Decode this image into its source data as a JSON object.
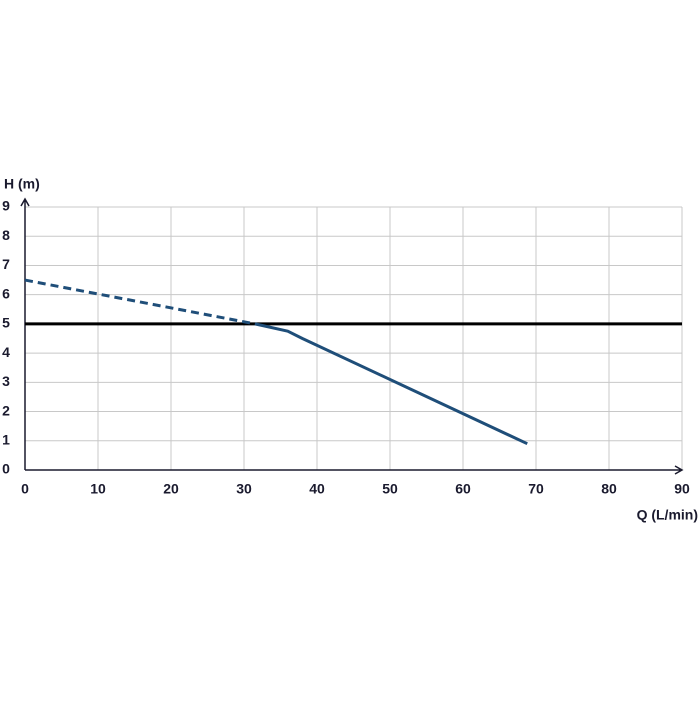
{
  "chart_data": {
    "type": "line",
    "y_label": "H (m)",
    "x_label": "Q (L/min)",
    "xlim": [
      0,
      90
    ],
    "xticks": [
      0,
      10,
      20,
      30,
      40,
      50,
      60,
      70,
      80,
      90
    ],
    "ylim": [
      0,
      9
    ],
    "yticks": [
      0,
      1,
      2,
      3,
      4,
      5,
      6,
      7,
      8,
      9
    ],
    "grid": true,
    "hline": 5,
    "hline_color": "#000000",
    "series": [
      {
        "color": "#1f4e79",
        "dashed": true,
        "x": [
          0,
          31.5
        ],
        "values": [
          6.5,
          5.0
        ]
      },
      {
        "color": "#1f4e79",
        "dashed": false,
        "x": [
          31.5,
          36,
          38,
          68.8
        ],
        "values": [
          5.0,
          4.75,
          4.5,
          0.9
        ]
      }
    ]
  }
}
